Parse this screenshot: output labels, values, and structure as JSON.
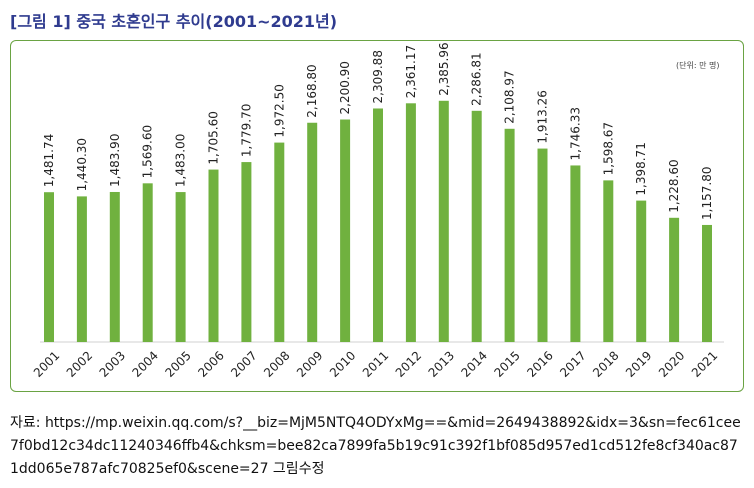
{
  "header": {
    "title_prefix": "[그림 1]",
    "title_text": "중국 초혼인구 추이(2001~2021년)"
  },
  "unit_label": "(단위: 만 명)",
  "source": {
    "label": "자료:",
    "text": "https://mp.weixin.qq.com/s?__biz=MjM5NTQ4ODYxMg==&mid=2649438892&idx=3&sn=fec61cee7f0bd12c34dc11240346ffb4&chksm=bee82ca7899fa5b19c91c392f1bf085d957ed1cd512fe8cf340ac871dd065e787afc70825ef0&scene=27 그림수정"
  },
  "colors": {
    "bar": "#70b13f",
    "title": "#2f3b8f",
    "frame": "#6aa343"
  },
  "chart_data": {
    "type": "bar",
    "categories": [
      "2001",
      "2002",
      "2003",
      "2004",
      "2005",
      "2006",
      "2007",
      "2008",
      "2009",
      "2010",
      "2011",
      "2012",
      "2013",
      "2014",
      "2015",
      "2016",
      "2017",
      "2018",
      "2019",
      "2020",
      "2021"
    ],
    "values": [
      1481.74,
      1440.3,
      1483.9,
      1569.6,
      1483.0,
      1705.6,
      1779.7,
      1972.5,
      2168.8,
      2200.9,
      2309.88,
      2361.17,
      2385.96,
      2286.81,
      2108.97,
      1913.26,
      1746.33,
      1598.67,
      1398.71,
      1228.6,
      1157.8
    ],
    "value_labels": [
      "1,481.74",
      "1,440.30",
      "1,483.90",
      "1,569.60",
      "1,483.00",
      "1,705.60",
      "1,779.70",
      "1,972.50",
      "2,168.80",
      "2,200.90",
      "2,309.88",
      "2,361.17",
      "2,385.96",
      "2,286.81",
      "2,108.97",
      "1,913.26",
      "1,746.33",
      "1,598.67",
      "1,398.71",
      "1,228.60",
      "1,157.80"
    ],
    "ylim": [
      0,
      2740
    ],
    "grid": false,
    "legend": "none"
  }
}
